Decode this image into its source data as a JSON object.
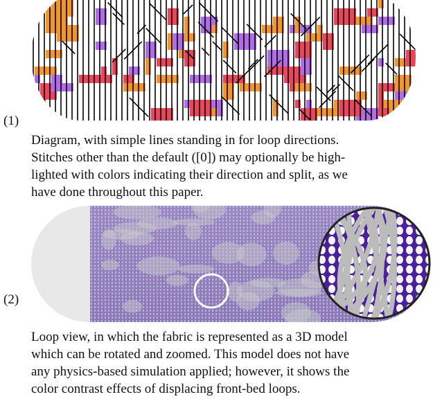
{
  "figure": {
    "items": [
      {
        "label": "(1)",
        "caption_lines": [
          "Diagram, with simple lines standing in for loop directions.",
          "Stitches other than the default ([0]) may optionally be high-",
          "lighted with colors indicating their direction and split, as we",
          "have done throughout this paper."
        ]
      },
      {
        "label": "(2)",
        "caption_lines": [
          "Loop view, in which the fabric is represented as a 3D model",
          "which can be rotated and zoomed. This model does not have",
          "any physics-based simulation applied; however, it shows the",
          "color contrast effects of displacing front-bed loops."
        ]
      }
    ]
  }
}
